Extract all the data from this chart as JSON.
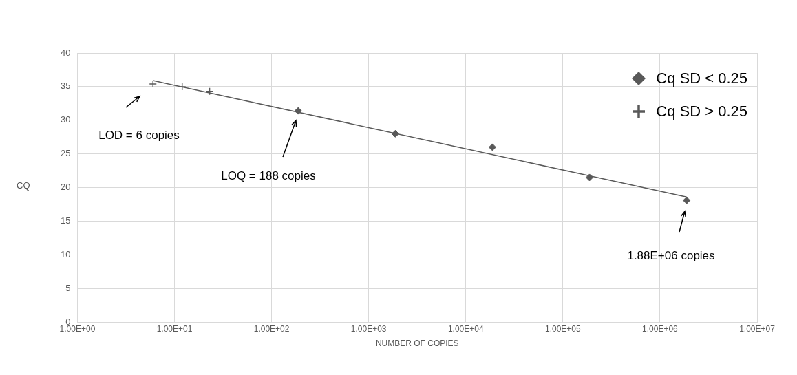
{
  "chart_data": {
    "type": "scatter",
    "xlabel": "NUMBER OF COPIES",
    "ylabel": "CQ",
    "log": "x",
    "grid": true,
    "legend": "top right",
    "xlim": [
      1,
      10000000
    ],
    "xticks": [
      {
        "value": 1,
        "label": "1.00E+00"
      },
      {
        "value": 10,
        "label": "1.00E+01"
      },
      {
        "value": 100,
        "label": "1.00E+02"
      },
      {
        "value": 1000,
        "label": "1.00E+03"
      },
      {
        "value": 10000,
        "label": "1.00E+04"
      },
      {
        "value": 100000,
        "label": "1.00E+05"
      },
      {
        "value": 1000000,
        "label": "1.00E+06"
      },
      {
        "value": 10000000,
        "label": "1.00E+07"
      }
    ],
    "ylim": [
      0,
      40
    ],
    "yticks": [
      0,
      5,
      10,
      15,
      20,
      25,
      30,
      35,
      40
    ],
    "series": [
      {
        "name": "Cq SD < 0.25",
        "marker": "diamond",
        "color": "#595959",
        "x": [
          188,
          1880,
          18800,
          188000,
          1880000
        ],
        "values": [
          31.4,
          28.0,
          26.0,
          21.5,
          18.1
        ]
      },
      {
        "name": "Cq SD > 0.25",
        "marker": "cross",
        "color": "#595959",
        "x": [
          6,
          12,
          23
        ],
        "values": [
          35.4,
          35.0,
          34.3
        ]
      },
      {
        "type": "line",
        "marker": "none",
        "color": "#595959",
        "x": [
          6,
          1880000
        ],
        "values": [
          35.9,
          18.6
        ]
      }
    ],
    "annotations": [
      "LOD = 6 copies",
      "LOQ = 188 copies",
      "1.88E+06 copies"
    ]
  }
}
